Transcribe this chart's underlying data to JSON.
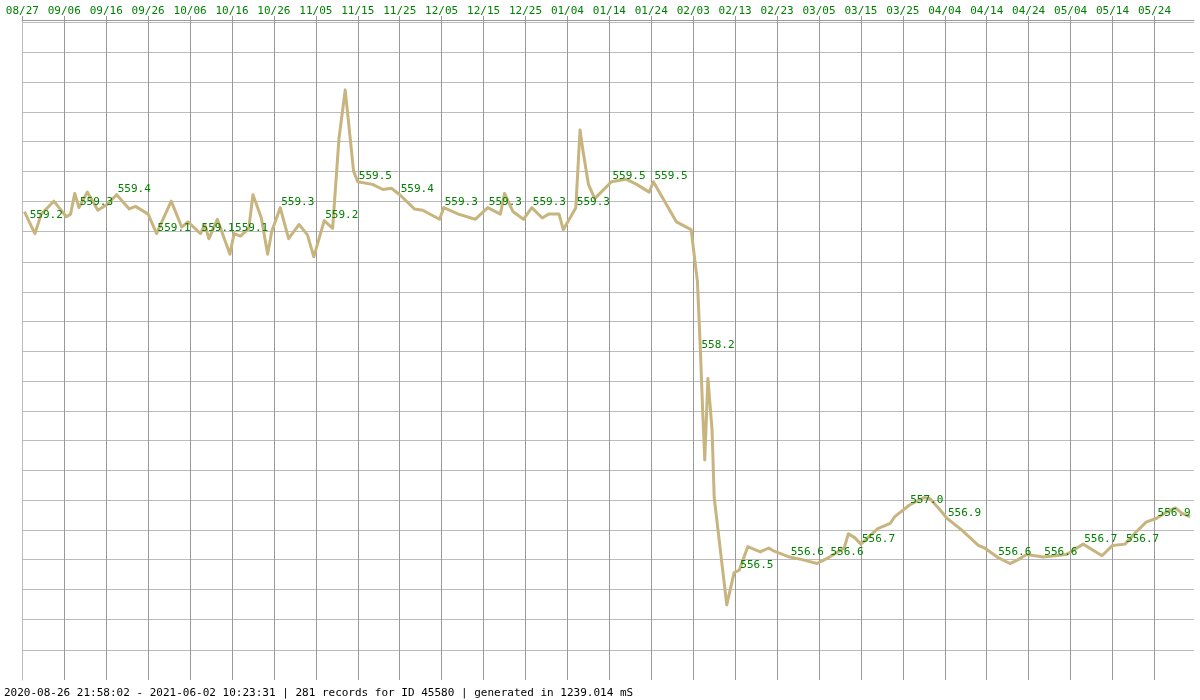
{
  "chart_data": {
    "type": "line",
    "annotations": [
      "2020-08-26 21:58:02 - 2021-06-02 10:23:31 | 281 records for ID 45580 | generated in 1239.014 mS"
    ],
    "xlim": [
      "2020-08-26T21:58",
      "2021-06-02T10:23"
    ],
    "xticks": [
      {
        "value": "2020-08-27",
        "label": "08/27"
      },
      {
        "value": "2020-09-06",
        "label": "09/06"
      },
      {
        "value": "2020-09-16",
        "label": "09/16"
      },
      {
        "value": "2020-09-26",
        "label": "09/26"
      },
      {
        "value": "2020-10-06",
        "label": "10/06"
      },
      {
        "value": "2020-10-16",
        "label": "10/16"
      },
      {
        "value": "2020-10-26",
        "label": "10/26"
      },
      {
        "value": "2020-11-05",
        "label": "11/05"
      },
      {
        "value": "2020-11-15",
        "label": "11/15"
      },
      {
        "value": "2020-11-25",
        "label": "11/25"
      },
      {
        "value": "2020-12-05",
        "label": "12/05"
      },
      {
        "value": "2020-12-15",
        "label": "12/15"
      },
      {
        "value": "2020-12-25",
        "label": "12/25"
      },
      {
        "value": "2021-01-04",
        "label": "01/04"
      },
      {
        "value": "2021-01-14",
        "label": "01/14"
      },
      {
        "value": "2021-01-24",
        "label": "01/24"
      },
      {
        "value": "2021-02-03",
        "label": "02/03"
      },
      {
        "value": "2021-02-13",
        "label": "02/13"
      },
      {
        "value": "2021-02-23",
        "label": "02/23"
      },
      {
        "value": "2021-03-05",
        "label": "03/05"
      },
      {
        "value": "2021-03-15",
        "label": "03/15"
      },
      {
        "value": "2021-03-25",
        "label": "03/25"
      },
      {
        "value": "2021-04-04",
        "label": "04/04"
      },
      {
        "value": "2021-04-14",
        "label": "04/14"
      },
      {
        "value": "2021-04-24",
        "label": "04/24"
      },
      {
        "value": "2021-05-04",
        "label": "05/04"
      },
      {
        "value": "2021-05-14",
        "label": "05/14"
      },
      {
        "value": "2021-05-24",
        "label": "05/24"
      }
    ],
    "ylim": [
      555.65,
      560.75
    ],
    "yticks": [
      {
        "value": 560.73,
        "label": null
      },
      {
        "value": 560.5,
        "label": null
      },
      {
        "value": 560.27,
        "label": null
      },
      {
        "value": 560.04,
        "label": null
      },
      {
        "value": 559.81,
        "label": null
      },
      {
        "value": 559.58,
        "label": null
      },
      {
        "value": 559.35,
        "label": null
      },
      {
        "value": 559.12,
        "label": null
      },
      {
        "value": 558.88,
        "label": null
      },
      {
        "value": 558.65,
        "label": null
      },
      {
        "value": 558.42,
        "label": null
      },
      {
        "value": 558.19,
        "label": null
      },
      {
        "value": 557.96,
        "label": null
      },
      {
        "value": 557.73,
        "label": null
      },
      {
        "value": 557.5,
        "label": null
      },
      {
        "value": 557.27,
        "label": null
      },
      {
        "value": 557.04,
        "label": null
      },
      {
        "value": 556.81,
        "label": null
      },
      {
        "value": 556.58,
        "label": null
      },
      {
        "value": 556.35,
        "label": null
      },
      {
        "value": 556.12,
        "label": null
      },
      {
        "value": 555.88,
        "label": null
      }
    ],
    "tick_labels": "x",
    "grid": true,
    "series": [
      {
        "color": "#c8b47e",
        "x": [
          "2020-08-27T12:00",
          "2020-08-28T12:00",
          "2020-08-30",
          "2020-08-31T12:00",
          "2020-09-03T12:00",
          "2020-09-06T12:00",
          "2020-09-07T12:00",
          "2020-09-08T12:00",
          "2020-09-09T12:00",
          "2020-09-11T12:00",
          "2020-09-14",
          "2020-09-16",
          "2020-09-18T12:00",
          "2020-09-21T12:00",
          "2020-09-23",
          "2020-09-26",
          "2020-09-28",
          "2020-10-01T12:00",
          "2020-10-04",
          "2020-10-05T12:00",
          "2020-10-08T12:00",
          "2020-10-09T12:00",
          "2020-10-10T12:00",
          "2020-10-12T12:00",
          "2020-10-15T12:00",
          "2020-10-16T12:00",
          "2020-10-18",
          "2020-10-20",
          "2020-10-21",
          "2020-10-23",
          "2020-10-24T12:00",
          "2020-10-25T12:00",
          "2020-10-27T12:00",
          "2020-10-29T12:00",
          "2020-11-01",
          "2020-11-03",
          "2020-11-04T12:00",
          "2020-11-07",
          "2020-11-09",
          "2020-11-10T12:00",
          "2020-11-12",
          "2020-11-14",
          "2020-11-15",
          "2020-11-18T12:00",
          "2020-11-21",
          "2020-11-23",
          "2020-11-25",
          "2020-11-28T12:00",
          "2020-11-30T12:00",
          "2020-12-04T12:00",
          "2020-12-05T12:00",
          "2020-12-09",
          "2020-12-13",
          "2020-12-16",
          "2020-12-19",
          "2020-12-20",
          "2020-12-22",
          "2020-12-24T12:00",
          "2020-12-26T12:00",
          "2020-12-29",
          "2020-12-30T12:00",
          "2021-01-02",
          "2021-01-03",
          "2021-01-06",
          "2021-01-07",
          "2021-01-07T18:00",
          "2021-01-09",
          "2021-01-10T12:00",
          "2021-01-14T12:00",
          "2021-01-18",
          "2021-01-20T12:00",
          "2021-01-23T12:00",
          "2021-01-24T12:00",
          "2021-01-30",
          "2021-02-02T12:00",
          "2021-02-04",
          "2021-02-04T17:00",
          "2021-02-05T06:00",
          "2021-02-05T18:00",
          "2021-02-06T12:00",
          "2021-02-07T12:00",
          "2021-02-08",
          "2021-02-11",
          "2021-02-12T18:00",
          "2021-02-14",
          "2021-02-16",
          "2021-02-19",
          "2021-02-21",
          "2021-02-22",
          "2021-02-26",
          "2021-03-01",
          "2021-03-04T12:00",
          "2021-03-07T12:00",
          "2021-03-11",
          "2021-03-12",
          "2021-03-13T12:00",
          "2021-03-15",
          "2021-03-19",
          "2021-03-22",
          "2021-03-23",
          "2021-03-26T12:00",
          "2021-03-30",
          "2021-03-31T12:00",
          "2021-04-03",
          "2021-04-04T12:00",
          "2021-04-08",
          "2021-04-12",
          "2021-04-13T12:00",
          "2021-04-16T12:00",
          "2021-04-19T12:00",
          "2021-04-21T12:00",
          "2021-04-23T12:00",
          "2021-04-27T12:00",
          "2021-05-03",
          "2021-05-07",
          "2021-05-11T12:00",
          "2021-05-14",
          "2021-05-17",
          "2021-05-19T12:00",
          "2021-05-22",
          "2021-05-24T12:00",
          "2021-05-27",
          "2021-05-29",
          "2021-05-30T12:00",
          "2021-06-01T12:00"
        ],
        "values": [
          559.27,
          559.2,
          559.1,
          559.25,
          559.35,
          559.23,
          559.25,
          559.41,
          559.3,
          559.42,
          559.28,
          559.32,
          559.4,
          559.29,
          559.31,
          559.25,
          559.1,
          559.35,
          559.15,
          559.19,
          559.1,
          559.17,
          559.06,
          559.21,
          558.94,
          559.1,
          559.08,
          559.14,
          559.4,
          559.22,
          558.94,
          559.12,
          559.3,
          559.06,
          559.17,
          559.09,
          558.92,
          559.2,
          559.14,
          559.83,
          560.21,
          559.58,
          559.5,
          559.48,
          559.44,
          559.45,
          559.4,
          559.29,
          559.28,
          559.21,
          559.3,
          559.25,
          559.21,
          559.3,
          559.25,
          559.41,
          559.27,
          559.21,
          559.3,
          559.22,
          559.25,
          559.25,
          559.13,
          559.3,
          559.9,
          559.73,
          559.48,
          559.37,
          559.5,
          559.52,
          559.48,
          559.42,
          559.5,
          559.19,
          559.13,
          558.73,
          558.2,
          557.73,
          557.35,
          557.98,
          557.58,
          557.06,
          556.23,
          556.48,
          556.5,
          556.68,
          556.64,
          556.67,
          556.65,
          556.6,
          556.58,
          556.55,
          556.6,
          556.67,
          556.78,
          556.75,
          556.7,
          556.82,
          556.86,
          556.91,
          557.0,
          557.06,
          557.05,
          556.96,
          556.9,
          556.81,
          556.69,
          556.67,
          556.6,
          556.55,
          556.58,
          556.62,
          556.6,
          556.62,
          556.7,
          556.61,
          556.69,
          556.7,
          556.79,
          556.87,
          556.9,
          556.95,
          556.98,
          556.94,
          556.91
        ],
        "value_labels": [
          null,
          "559.2",
          null,
          null,
          null,
          null,
          null,
          null,
          "559.3",
          null,
          null,
          null,
          "559.4",
          null,
          null,
          null,
          "559.1",
          null,
          null,
          null,
          "559.1",
          null,
          null,
          null,
          null,
          "559.1",
          null,
          null,
          null,
          null,
          null,
          null,
          "559.3",
          null,
          null,
          null,
          null,
          "559.2",
          null,
          null,
          null,
          null,
          "559.5",
          null,
          null,
          null,
          "559.4",
          null,
          null,
          null,
          "559.3",
          null,
          null,
          "559.3",
          null,
          null,
          null,
          null,
          "559.3",
          null,
          null,
          null,
          null,
          "559.3",
          null,
          null,
          null,
          null,
          "559.5",
          null,
          null,
          null,
          "559.5",
          null,
          null,
          null,
          "558.2",
          null,
          null,
          null,
          null,
          null,
          null,
          null,
          "556.5",
          null,
          null,
          null,
          null,
          "556.6",
          null,
          null,
          "556.6",
          null,
          null,
          null,
          "556.7",
          null,
          null,
          null,
          "557.0",
          null,
          null,
          null,
          "556.9",
          null,
          null,
          null,
          "556.6",
          null,
          null,
          null,
          "556.6",
          null,
          "556.7",
          null,
          null,
          "556.7",
          null,
          null,
          "556.9",
          null,
          null,
          null,
          null
        ]
      }
    ]
  }
}
